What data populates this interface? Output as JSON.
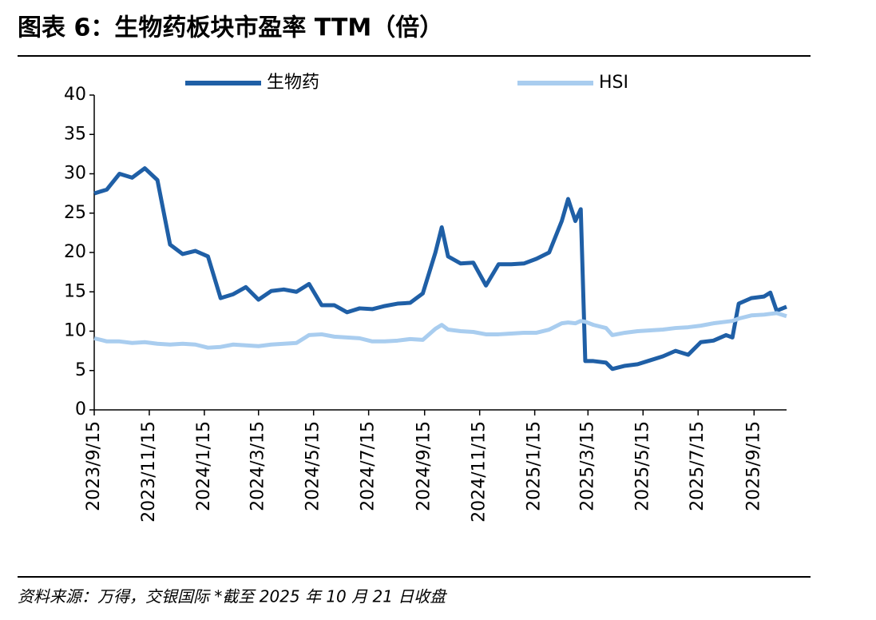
{
  "chart_data": {
    "type": "line",
    "title": "图表 6：生物药板块市盈率 TTM（倍）",
    "source": "资料来源：万得，交银国际 *截至 2025 年 10 月 21 日收盘",
    "x": [
      "2023/9/15",
      "2023/9/29",
      "2023/10/13",
      "2023/10/27",
      "2023/11/10",
      "2023/11/24",
      "2023/12/8",
      "2023/12/22",
      "2024/1/5",
      "2024/1/19",
      "2024/2/2",
      "2024/2/16",
      "2024/3/1",
      "2024/3/15",
      "2024/3/29",
      "2024/4/12",
      "2024/4/26",
      "2024/5/10",
      "2024/5/24",
      "2024/6/7",
      "2024/6/21",
      "2024/7/5",
      "2024/7/19",
      "2024/8/2",
      "2024/8/16",
      "2024/8/30",
      "2024/9/13",
      "2024/9/27",
      "2024/10/4",
      "2024/10/11",
      "2024/10/25",
      "2024/11/8",
      "2024/11/22",
      "2024/12/6",
      "2024/12/20",
      "2025/1/3",
      "2025/1/17",
      "2025/1/31",
      "2025/2/14",
      "2025/2/21",
      "2025/3/1",
      "2025/3/7",
      "2025/3/12",
      "2025/3/21",
      "2025/4/4",
      "2025/4/11",
      "2025/4/25",
      "2025/5/9",
      "2025/5/23",
      "2025/6/6",
      "2025/6/20",
      "2025/7/4",
      "2025/7/18",
      "2025/8/1",
      "2025/8/15",
      "2025/8/22",
      "2025/8/29",
      "2025/9/12",
      "2025/9/26",
      "2025/10/3",
      "2025/10/10",
      "2025/10/21"
    ],
    "series": [
      {
        "name": "生物药",
        "color": "#1f5fa6",
        "values": [
          27.5,
          28,
          30,
          29.5,
          30.7,
          29.2,
          21,
          19.8,
          20.2,
          19.5,
          14.2,
          14.7,
          15.6,
          14,
          15.1,
          15.3,
          15,
          16,
          13.3,
          13.3,
          12.4,
          12.9,
          12.8,
          13.2,
          13.5,
          13.6,
          14.8,
          20,
          23.2,
          19.5,
          18.6,
          18.7,
          15.8,
          18.5,
          18.5,
          18.6,
          19.2,
          20,
          24,
          26.8,
          24,
          25.5,
          6.2,
          6.2,
          6,
          5.2,
          5.6,
          5.8,
          6.3,
          6.8,
          7.5,
          7,
          8.6,
          8.8,
          9.5,
          9.2,
          13.5,
          14.2,
          14.4,
          14.9,
          12.6,
          13.1
        ]
      },
      {
        "name": "HSI",
        "color": "#a9cdef",
        "values": [
          9.1,
          8.7,
          8.7,
          8.5,
          8.6,
          8.4,
          8.3,
          8.4,
          8.3,
          7.9,
          8,
          8.3,
          8.2,
          8.1,
          8.3,
          8.4,
          8.5,
          9.5,
          9.6,
          9.3,
          9.2,
          9.1,
          8.7,
          8.7,
          8.8,
          9,
          8.9,
          10.3,
          10.8,
          10.2,
          10,
          9.9,
          9.6,
          9.6,
          9.7,
          9.8,
          9.8,
          10.2,
          11,
          11.1,
          11,
          11.3,
          11.2,
          10.8,
          10.4,
          9.5,
          9.8,
          10,
          10.1,
          10.2,
          10.4,
          10.5,
          10.7,
          11,
          11.2,
          11.3,
          11.6,
          12,
          12.1,
          12.2,
          12.3,
          11.9
        ]
      }
    ],
    "xlim": [
      "2023/9/15",
      "2025/10/21"
    ],
    "xticks": [
      "2023/9/15",
      "2023/11/15",
      "2024/1/15",
      "2024/3/15",
      "2024/5/15",
      "2024/7/15",
      "2024/9/15",
      "2024/11/15",
      "2025/1/15",
      "2025/3/15",
      "2025/5/15",
      "2025/7/15",
      "2025/9/15"
    ],
    "ylim": [
      0,
      40
    ],
    "yticks": [
      0,
      5,
      10,
      15,
      20,
      25,
      30,
      35,
      40
    ],
    "legend": "top"
  }
}
